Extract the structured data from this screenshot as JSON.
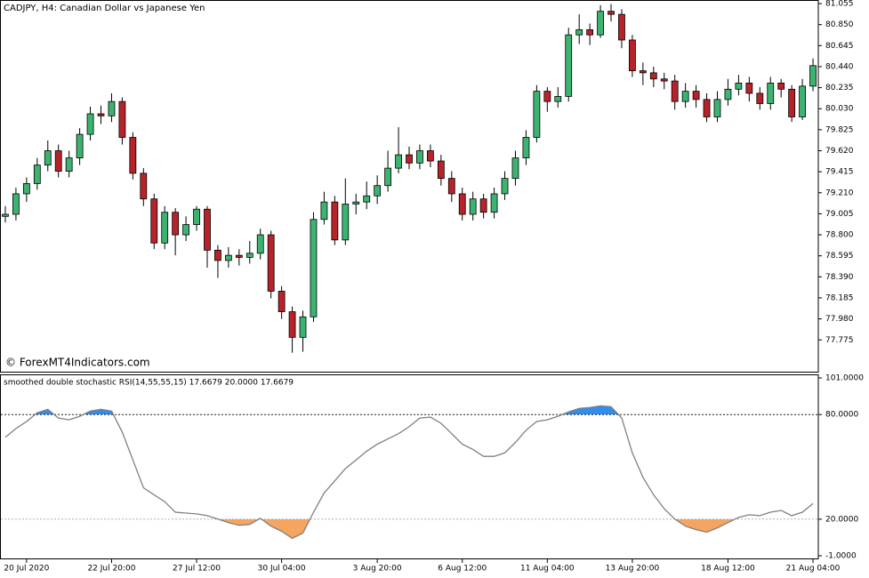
{
  "chart_data": [
    {
      "type": "candlestick",
      "title": "CADJPY, H4:  Canadian Dollar vs Japanese Yen",
      "annotation": "© ForexMT4Indicators.com",
      "up_color": "#3cb371",
      "down_color": "#b8232a",
      "ylim": [
        77.465,
        81.09
      ],
      "yticks": [
        81.055,
        {
          "value": 80.85,
          "label": "80.850"
        },
        80.645,
        {
          "value": 80.44,
          "label": "80.440"
        },
        80.235,
        {
          "value": 80.03,
          "label": "80.030"
        },
        79.825,
        {
          "value": 79.62,
          "label": "79.620"
        },
        79.415,
        {
          "value": 79.21,
          "label": "79.210"
        },
        79.005,
        {
          "value": 78.8,
          "label": "78.800"
        },
        78.595,
        {
          "value": 78.39,
          "label": "78.390"
        },
        78.185,
        {
          "value": 77.98,
          "label": "77.980"
        },
        77.775
      ],
      "open": [
        78.98,
        79.0,
        79.2,
        79.3,
        79.48,
        79.62,
        79.42,
        79.55,
        79.78,
        79.98,
        79.96,
        80.1,
        79.75,
        79.4,
        79.15,
        78.72,
        79.02,
        78.8,
        78.9,
        79.05,
        78.65,
        78.55,
        78.6,
        78.58,
        78.62,
        78.8,
        78.25,
        78.05,
        77.8,
        78.0,
        78.95,
        79.12,
        78.75,
        79.1,
        79.12,
        79.18,
        79.28,
        79.45,
        79.58,
        79.5,
        79.62,
        79.52,
        79.35,
        79.2,
        79.0,
        79.15,
        79.02,
        79.2,
        79.35,
        79.55,
        79.75,
        80.2,
        80.1,
        80.15,
        80.75,
        80.8,
        80.75,
        80.98,
        80.95,
        80.7,
        80.4,
        80.38,
        80.32,
        80.3,
        80.1,
        80.2,
        80.12,
        79.95,
        80.12,
        80.22,
        80.28,
        80.18,
        80.08,
        80.28,
        80.22,
        79.95,
        80.25
      ],
      "high": [
        79.08,
        79.26,
        79.36,
        79.55,
        79.72,
        79.68,
        79.62,
        79.84,
        80.05,
        80.06,
        80.18,
        80.14,
        79.8,
        79.45,
        79.2,
        79.08,
        79.06,
        78.98,
        79.08,
        79.08,
        78.7,
        78.68,
        78.66,
        78.74,
        78.86,
        78.84,
        78.3,
        78.1,
        78.06,
        79.02,
        79.22,
        79.18,
        79.35,
        79.2,
        79.32,
        79.38,
        79.62,
        79.85,
        79.66,
        79.68,
        79.68,
        79.58,
        79.42,
        79.26,
        79.22,
        79.2,
        79.26,
        79.42,
        79.62,
        79.82,
        80.26,
        80.24,
        80.24,
        80.82,
        80.95,
        80.86,
        81.04,
        81.05,
        81.0,
        80.75,
        80.48,
        80.44,
        80.38,
        80.36,
        80.28,
        80.26,
        80.18,
        80.2,
        80.32,
        80.36,
        80.34,
        80.24,
        80.34,
        80.32,
        80.26,
        80.32,
        80.52
      ],
      "low": [
        78.92,
        78.94,
        79.12,
        79.24,
        79.42,
        79.36,
        79.36,
        79.48,
        79.72,
        79.88,
        79.9,
        79.68,
        79.34,
        79.08,
        78.66,
        78.66,
        78.6,
        78.74,
        78.84,
        78.48,
        78.38,
        78.48,
        78.5,
        78.52,
        78.56,
        78.18,
        77.98,
        77.65,
        77.66,
        77.95,
        78.9,
        78.7,
        78.7,
        79.0,
        79.05,
        79.1,
        79.22,
        79.4,
        79.44,
        79.44,
        79.46,
        79.28,
        79.12,
        78.94,
        78.94,
        78.96,
        78.96,
        79.14,
        79.28,
        79.48,
        79.7,
        80.0,
        80.04,
        80.1,
        80.66,
        80.65,
        80.72,
        80.88,
        80.62,
        80.34,
        80.26,
        80.24,
        80.22,
        80.02,
        80.04,
        80.04,
        79.9,
        79.9,
        80.06,
        80.16,
        80.1,
        80.02,
        80.02,
        80.14,
        79.9,
        79.92,
        80.2
      ],
      "close": [
        79.0,
        79.2,
        79.3,
        79.48,
        79.62,
        79.42,
        79.55,
        79.78,
        79.98,
        79.96,
        80.1,
        79.75,
        79.4,
        79.15,
        78.72,
        79.02,
        78.8,
        78.9,
        79.05,
        78.65,
        78.55,
        78.6,
        78.58,
        78.62,
        78.8,
        78.25,
        78.05,
        77.8,
        78.0,
        78.95,
        79.12,
        78.75,
        79.1,
        79.12,
        79.18,
        79.28,
        79.45,
        79.58,
        79.5,
        79.62,
        79.52,
        79.35,
        79.2,
        79.0,
        79.15,
        79.02,
        79.2,
        79.35,
        79.55,
        79.75,
        80.2,
        80.1,
        80.15,
        80.75,
        80.8,
        80.75,
        80.98,
        80.95,
        80.7,
        80.4,
        80.38,
        80.32,
        80.3,
        80.1,
        80.2,
        80.12,
        79.95,
        80.12,
        80.22,
        80.28,
        80.18,
        80.08,
        80.28,
        80.22,
        79.95,
        80.25,
        80.45
      ]
    },
    {
      "type": "line",
      "title": "smoothed double stochastic RSI(14,55,55,15) 17.6679 20.0000 17.6679",
      "color": "#808080",
      "overbought_color": "#2e8ff0",
      "oversold_color": "#f5a55f",
      "levels": [
        80,
        20
      ],
      "ylim": [
        -1,
        101
      ],
      "yticks": [
        {
          "value": 101,
          "label": "101.0000"
        },
        {
          "value": 80,
          "label": "80.0000"
        },
        {
          "value": 20,
          "label": "20.0000"
        },
        {
          "value": -1,
          "label": "-1.0000"
        }
      ],
      "categories": [
        null,
        null,
        "20 Jul 2020",
        null,
        null,
        null,
        null,
        null,
        null,
        null,
        "22 Jul 20:00",
        null,
        null,
        null,
        null,
        null,
        null,
        null,
        "27 Jul 12:00",
        null,
        null,
        null,
        null,
        null,
        null,
        null,
        "30 Jul 04:00",
        null,
        null,
        null,
        null,
        null,
        null,
        null,
        null,
        "3 Aug 20:00",
        null,
        null,
        null,
        null,
        null,
        null,
        null,
        "6 Aug 12:00",
        null,
        null,
        null,
        null,
        null,
        null,
        null,
        "11 Aug 04:00",
        null,
        null,
        null,
        null,
        null,
        null,
        null,
        "13 Aug 20:00",
        null,
        null,
        null,
        null,
        null,
        null,
        null,
        null,
        "18 Aug 12:00",
        null,
        null,
        null,
        null,
        null,
        null,
        null,
        "21 Aug 04:00"
      ],
      "values": [
        67,
        72,
        76,
        81,
        83,
        78,
        77,
        79,
        82,
        83,
        82,
        70,
        54,
        38,
        34,
        30,
        24,
        23.5,
        23,
        22,
        20,
        18,
        16.5,
        17,
        20.5,
        16,
        13,
        9,
        12,
        24,
        35,
        42,
        49,
        54,
        59,
        63,
        66,
        69,
        73,
        78,
        78.5,
        75,
        69,
        63,
        60,
        56,
        56,
        58,
        64,
        71,
        76,
        77,
        79,
        81.5,
        83.5,
        84,
        85,
        84.5,
        78,
        58,
        44,
        34,
        26,
        20,
        16,
        14,
        12.5,
        15,
        18,
        21,
        22.5,
        22,
        24,
        25,
        22,
        24,
        29
      ]
    }
  ]
}
